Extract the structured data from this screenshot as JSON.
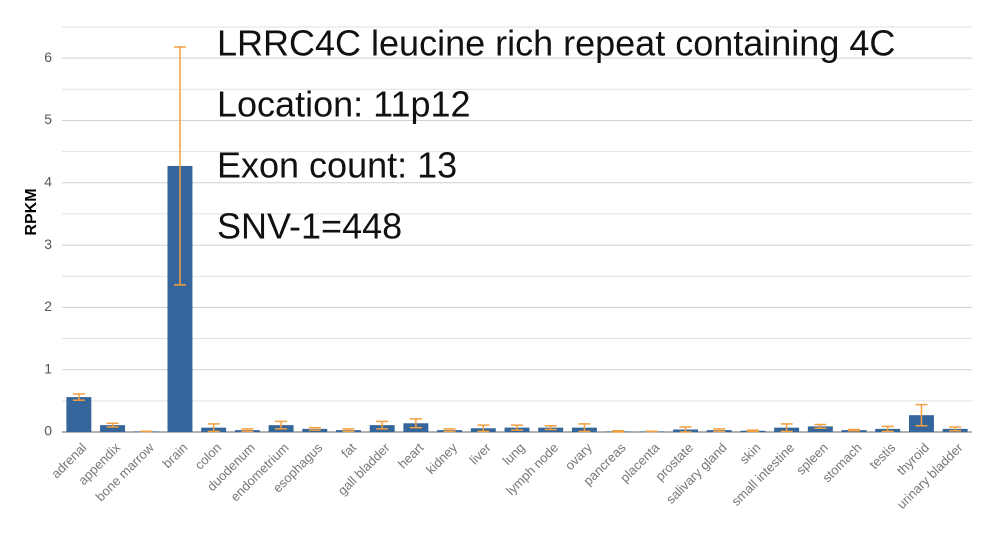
{
  "chart_data": {
    "type": "bar",
    "y_label": "RPKM",
    "annotations": [
      "LRRC4C leucine rich repeat containing 4C",
      "Location: 11p12",
      "Exon count: 13",
      "SNV-1=448"
    ],
    "categories": [
      "adrenal",
      "appendix",
      "bone marrow",
      "brain",
      "colon",
      "duodenum",
      "endometrium",
      "esophagus",
      "fat",
      "gall bladder",
      "heart",
      "kidney",
      "liver",
      "lung",
      "lymph node",
      "ovary",
      "pancreas",
      "placenta",
      "prostate",
      "salivary gland",
      "skin",
      "small intestine",
      "spleen",
      "stomach",
      "testis",
      "thyroid",
      "urinary bladder"
    ],
    "values": [
      0.56,
      0.11,
      0.01,
      4.27,
      0.07,
      0.03,
      0.11,
      0.05,
      0.03,
      0.11,
      0.14,
      0.03,
      0.06,
      0.07,
      0.07,
      0.07,
      0.01,
      0.01,
      0.04,
      0.03,
      0.02,
      0.07,
      0.09,
      0.03,
      0.05,
      0.27,
      0.05
    ],
    "errors": [
      0.05,
      0.03,
      0,
      1.91,
      0.06,
      0.02,
      0.06,
      0.02,
      0.02,
      0.06,
      0.07,
      0.02,
      0.05,
      0.04,
      0.03,
      0.06,
      0.01,
      0,
      0.04,
      0.02,
      0.01,
      0.06,
      0.03,
      0.01,
      0.04,
      0.17,
      0.03
    ],
    "color": "#34659b",
    "error_color": "#f0a040",
    "ylim": [
      0,
      6.5
    ],
    "yticks": [
      0,
      1,
      2,
      3,
      4,
      5,
      6
    ],
    "grid": true,
    "minor_grid": true
  }
}
